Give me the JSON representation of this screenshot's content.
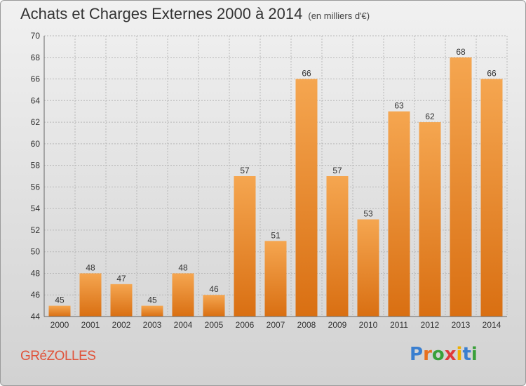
{
  "title": "Achats et Charges Externes 2000 à 2014",
  "subtitle": "(en milliers d'€)",
  "commune": "GRéZOLLES",
  "logo": {
    "text": "Proxiti",
    "letter_colors": [
      "#3a7fd0",
      "#e8701f",
      "#3aa03a",
      "#e03a3a",
      "#f0b000",
      "#3a7fd0",
      "#3aa03a"
    ]
  },
  "colors": {
    "bar_top": "#f5a650",
    "bar_bottom": "#d96f12",
    "grid": "#b8b8b8",
    "axis_text": "#333333"
  },
  "chart_data": {
    "type": "bar",
    "categories": [
      "2000",
      "2001",
      "2002",
      "2003",
      "2004",
      "2005",
      "2006",
      "2007",
      "2008",
      "2009",
      "2010",
      "2011",
      "2012",
      "2013",
      "2014"
    ],
    "values": [
      45,
      48,
      47,
      45,
      48,
      46,
      57,
      51,
      66,
      57,
      53,
      63,
      62,
      68,
      66
    ],
    "ylim": [
      44,
      70
    ],
    "yticks": [
      44,
      46,
      48,
      50,
      52,
      54,
      56,
      58,
      60,
      62,
      64,
      66,
      68,
      70
    ],
    "grid": true,
    "data_labels": true
  }
}
